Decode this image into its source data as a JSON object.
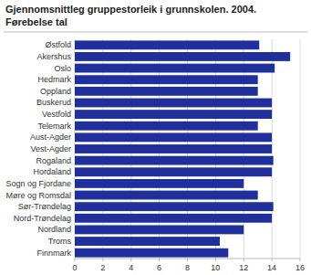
{
  "chart_data": {
    "type": "bar",
    "orientation": "horizontal",
    "title": "Gjennomsnittleg gruppestorleik i grunnskolen. 2004.",
    "subtitle": "Førebelse tal",
    "categories": [
      "Østfold",
      "Akershus",
      "Oslo",
      "Hedmark",
      "Oppland",
      "Buskerud",
      "Vestfold",
      "Telemark",
      "Aust-Agder",
      "Vest-Agder",
      "Rogaland",
      "Hordaland",
      "Sogn og Fjordane",
      "Møre og Romsdal",
      "Sør-Trøndelag",
      "Nord-Trøndelag",
      "Nordland",
      "Troms",
      "Finnmark"
    ],
    "values": [
      13.1,
      15.3,
      14.2,
      13.0,
      13.0,
      14.0,
      14.0,
      13.0,
      14.0,
      14.0,
      14.1,
      14.0,
      12.0,
      13.0,
      14.1,
      14.0,
      12.0,
      10.3,
      10.9
    ],
    "color": "#1f2f9c",
    "xlim": [
      0,
      16
    ],
    "xticks": [
      0,
      2,
      4,
      6,
      8,
      10,
      12,
      14,
      16
    ],
    "grid": true
  }
}
